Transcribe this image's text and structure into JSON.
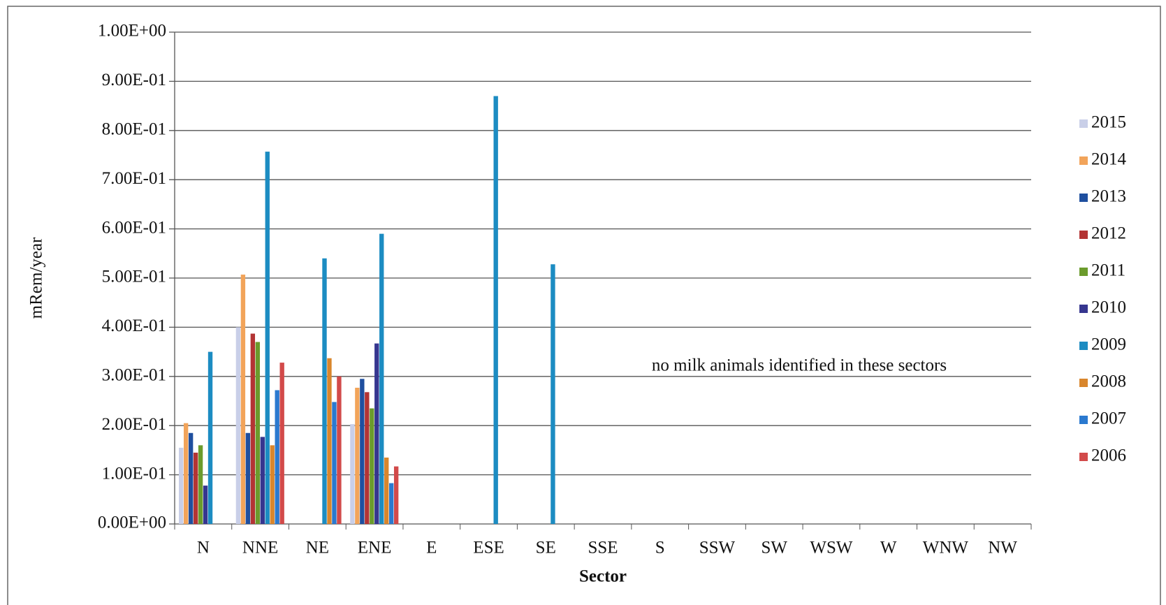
{
  "chart_data": {
    "type": "bar",
    "y_label": "mRem/year",
    "x_label": "Sector",
    "annotation": "no milk animals identified in these sectors",
    "categories": [
      "N",
      "NNE",
      "NE",
      "ENE",
      "E",
      "ESE",
      "SE",
      "SSE",
      "S",
      "SSW",
      "SW",
      "WSW",
      "W",
      "WNW",
      "NW"
    ],
    "ylim": [
      0,
      1
    ],
    "yticks": [
      {
        "value": 0,
        "label": "0.00E+00"
      },
      {
        "value": 0.1,
        "label": "1.00E-01"
      },
      {
        "value": 0.2,
        "label": "2.00E-01"
      },
      {
        "value": 0.3,
        "label": "3.00E-01"
      },
      {
        "value": 0.4,
        "label": "4.00E-01"
      },
      {
        "value": 0.5,
        "label": "5.00E-01"
      },
      {
        "value": 0.6,
        "label": "6.00E-01"
      },
      {
        "value": 0.7,
        "label": "7.00E-01"
      },
      {
        "value": 0.8,
        "label": "8.00E-01"
      },
      {
        "value": 0.9,
        "label": "9.00E-01"
      },
      {
        "value": 1,
        "label": "1.00E+00"
      }
    ],
    "grid": true,
    "legend": "right",
    "series": [
      {
        "name": "2015",
        "color": "#c9cfe8",
        "values": [
          0.155,
          0.4,
          null,
          0.203,
          null,
          null,
          null,
          null,
          null,
          null,
          null,
          null,
          null,
          null,
          null
        ]
      },
      {
        "name": "2014",
        "color": "#f2a45a",
        "values": [
          0.205,
          0.507,
          null,
          0.277,
          null,
          null,
          null,
          null,
          null,
          null,
          null,
          null,
          null,
          null,
          null
        ]
      },
      {
        "name": "2013",
        "color": "#1f4f9f",
        "values": [
          0.185,
          0.185,
          null,
          0.295,
          null,
          null,
          null,
          null,
          null,
          null,
          null,
          null,
          null,
          null,
          null
        ]
      },
      {
        "name": "2012",
        "color": "#b33434",
        "values": [
          0.145,
          0.387,
          null,
          0.268,
          null,
          null,
          null,
          null,
          null,
          null,
          null,
          null,
          null,
          null,
          null
        ]
      },
      {
        "name": "2011",
        "color": "#6b9b2c",
        "values": [
          0.16,
          0.37,
          null,
          0.235,
          null,
          null,
          null,
          null,
          null,
          null,
          null,
          null,
          null,
          null,
          null
        ]
      },
      {
        "name": "2010",
        "color": "#36368f",
        "values": [
          0.078,
          0.177,
          null,
          0.367,
          null,
          null,
          null,
          null,
          null,
          null,
          null,
          null,
          null,
          null,
          null
        ]
      },
      {
        "name": "2009",
        "color": "#1c8cc2",
        "values": [
          0.35,
          0.757,
          0.54,
          0.59,
          null,
          0.87,
          0.528,
          null,
          null,
          null,
          null,
          null,
          null,
          null,
          null
        ]
      },
      {
        "name": "2008",
        "color": "#d9862c",
        "values": [
          null,
          0.16,
          0.337,
          0.135,
          null,
          null,
          null,
          null,
          null,
          null,
          null,
          null,
          null,
          null,
          null
        ]
      },
      {
        "name": "2007",
        "color": "#2b79cf",
        "values": [
          null,
          0.272,
          0.248,
          0.083,
          null,
          null,
          null,
          null,
          null,
          null,
          null,
          null,
          null,
          null,
          null
        ]
      },
      {
        "name": "2006",
        "color": "#d24a4a",
        "values": [
          null,
          0.328,
          0.3,
          0.117,
          null,
          null,
          null,
          null,
          null,
          null,
          null,
          null,
          null,
          null,
          null
        ]
      }
    ]
  }
}
